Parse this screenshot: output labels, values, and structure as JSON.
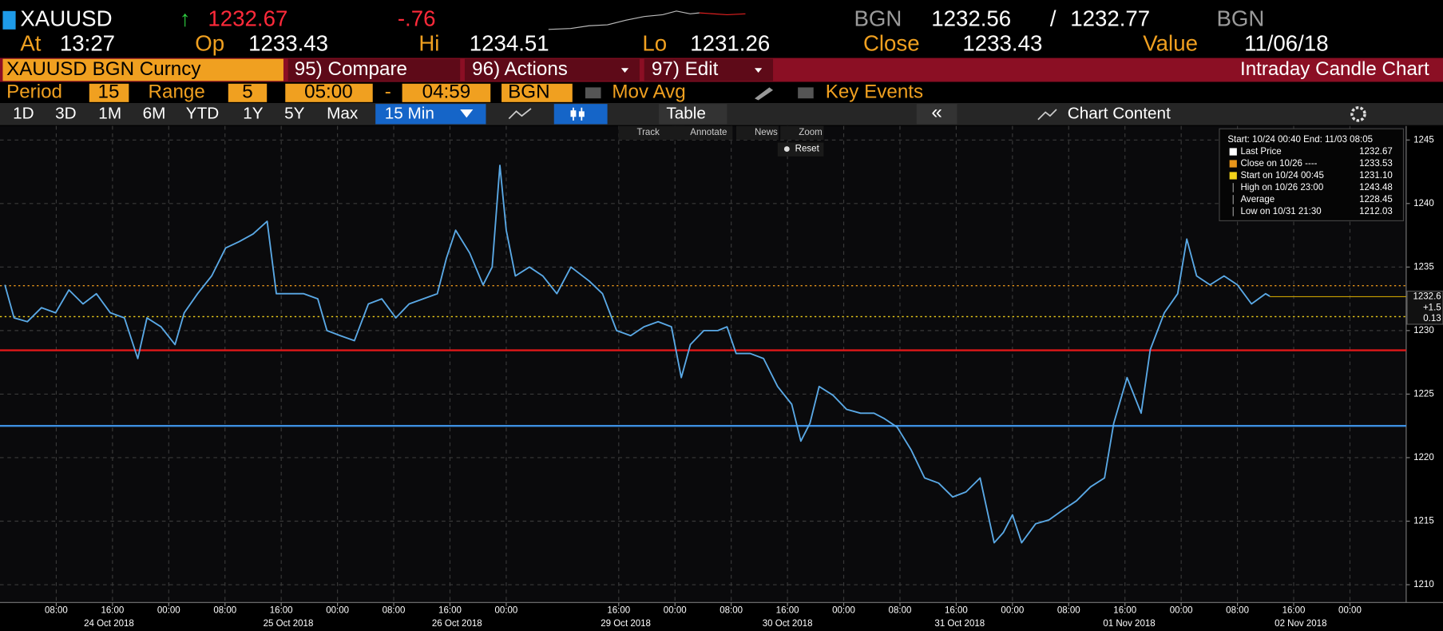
{
  "header": {
    "ticker": "XAUUSD",
    "arrow": "↑",
    "last": "1232.67",
    "change": "-.76",
    "source": "BGN",
    "bid": "1232.56",
    "slash": "/",
    "ask": "1232.77"
  },
  "quote_row": [
    {
      "label": "At",
      "value": "13:27"
    },
    {
      "label": "Op",
      "value": "1233.43"
    },
    {
      "label": "Hi",
      "value": "1234.51"
    },
    {
      "label": "Lo",
      "value": "1231.26"
    },
    {
      "label": "Close",
      "value": "1233.43"
    },
    {
      "label": "Value",
      "value": "11/06/18"
    }
  ],
  "menu": {
    "security": "XAUUSD BGN Curncy",
    "buttons": [
      "95) Compare",
      "96) Actions",
      "97) Edit"
    ],
    "title": "Intraday Candle Chart"
  },
  "settings": {
    "period_label": "Period",
    "period": "15",
    "range_label": "Range",
    "range": "5",
    "start": "05:00",
    "dash": "-",
    "end": "04:59",
    "mov_avg": "Mov Avg",
    "key_events": "Key Events"
  },
  "toolbar": {
    "ranges": [
      "1D",
      "3D",
      "1M",
      "6M",
      "YTD",
      "1Y",
      "5Y",
      "Max"
    ],
    "interval": "15 Min",
    "table": "Table",
    "collapse": "«",
    "chart_content": "Chart Content"
  },
  "chart_tools": [
    "Track",
    "Annotate",
    "News",
    "Zoom"
  ],
  "reset": "Reset",
  "chart_data": {
    "type": "line",
    "color": "#5aa9e6",
    "x": [
      0.7,
      2.0,
      3.9,
      5.9,
      7.9,
      9.8,
      11.8,
      13.7,
      15.7,
      17.7,
      19.6,
      20.9,
      22.9,
      24.9,
      26.2,
      28.1,
      30.1,
      32.1,
      34.0,
      36.0,
      38.0,
      39.3,
      41.2,
      43.2,
      45.2,
      46.5,
      48.4,
      50.4,
      52.4,
      54.3,
      56.3,
      58.2,
      60.2,
      62.2,
      63.5,
      64.8,
      66.8,
      68.7,
      70.0,
      71.1,
      72.0,
      73.3,
      75.3,
      77.2,
      79.2,
      81.2,
      83.8,
      85.7,
      87.7,
      89.7,
      91.6,
      93.6,
      95.5,
      96.9,
      98.2,
      100.1,
      102.1,
      103.4,
      104.7,
      106.7,
      108.6,
      110.6,
      112.6,
      113.9,
      115.2,
      116.5,
      118.5,
      120.4,
      122.4,
      124.3,
      125.7,
      127.6,
      129.6,
      131.5,
      133.5,
      135.5,
      137.4,
      139.4,
      141.4,
      142.7,
      144.0,
      145.3,
      147.3,
      149.2,
      151.2,
      153.1,
      155.1,
      157.1,
      158.4,
      160.3,
      162.3,
      163.6,
      165.6,
      167.5,
      168.8,
      170.2,
      172.1,
      174.1,
      176.0,
      178.0,
      180.0,
      180.6
    ],
    "values": [
      1233.6,
      1231.0,
      1230.7,
      1231.8,
      1231.4,
      1233.2,
      1232.1,
      1232.9,
      1231.4,
      1231.0,
      1227.8,
      1231.0,
      1230.3,
      1228.9,
      1231.4,
      1232.9,
      1234.3,
      1236.5,
      1237.0,
      1237.6,
      1238.6,
      1232.9,
      1232.9,
      1232.9,
      1232.5,
      1230.0,
      1229.6,
      1229.2,
      1232.1,
      1232.5,
      1231.0,
      1232.1,
      1232.5,
      1232.9,
      1235.7,
      1237.9,
      1236.1,
      1233.6,
      1235.0,
      1243.0,
      1237.9,
      1234.3,
      1235.0,
      1234.3,
      1232.9,
      1235.0,
      1233.9,
      1232.9,
      1230.0,
      1229.6,
      1230.3,
      1230.7,
      1230.3,
      1226.3,
      1228.9,
      1230.0,
      1230.0,
      1230.3,
      1228.2,
      1228.2,
      1227.8,
      1225.6,
      1224.2,
      1221.3,
      1222.7,
      1225.6,
      1224.9,
      1223.8,
      1223.5,
      1223.5,
      1223.1,
      1222.4,
      1220.6,
      1218.4,
      1218.0,
      1216.9,
      1217.3,
      1218.4,
      1213.3,
      1214.1,
      1215.5,
      1213.3,
      1214.8,
      1215.1,
      1215.9,
      1216.6,
      1217.7,
      1218.4,
      1222.7,
      1226.3,
      1223.5,
      1228.5,
      1231.4,
      1232.9,
      1237.2,
      1234.3,
      1233.6,
      1234.3,
      1233.6,
      1232.1,
      1232.9,
      1232.7
    ],
    "xlim": [
      0,
      200
    ],
    "ylim": [
      1208.6,
      1246.1
    ],
    "yticks": [
      1210,
      1215,
      1220,
      1225,
      1230,
      1235,
      1240,
      1245
    ],
    "xticks": [
      {
        "value": 8,
        "label": "08:00"
      },
      {
        "value": 16,
        "label": "16:00"
      },
      {
        "value": 24,
        "label": "00:00"
      },
      {
        "value": 32,
        "label": "08:00"
      },
      {
        "value": 40,
        "label": "16:00"
      },
      {
        "value": 48,
        "label": "00:00"
      },
      {
        "value": 56,
        "label": "08:00"
      },
      {
        "value": 64,
        "label": "16:00"
      },
      {
        "value": 72,
        "label": "00:00"
      },
      {
        "value": 88,
        "label": "16:00"
      },
      {
        "value": 96,
        "label": "00:00"
      },
      {
        "value": 104,
        "label": "08:00"
      },
      {
        "value": 112,
        "label": "16:00"
      },
      {
        "value": 120,
        "label": "00:00"
      },
      {
        "value": 128,
        "label": "08:00"
      },
      {
        "value": 136,
        "label": "16:00"
      },
      {
        "value": 144,
        "label": "00:00"
      },
      {
        "value": 152,
        "label": "08:00"
      },
      {
        "value": 160,
        "label": "16:00"
      },
      {
        "value": 168,
        "label": "00:00"
      },
      {
        "value": 176,
        "label": "08:00"
      },
      {
        "value": 184,
        "label": "16:00"
      },
      {
        "value": 192,
        "label": "00:00"
      }
    ],
    "date_labels": [
      {
        "value": 15.5,
        "label": "24 Oct 2018"
      },
      {
        "value": 41,
        "label": "25 Oct 2018"
      },
      {
        "value": 65,
        "label": "26 Oct 2018"
      },
      {
        "value": 89,
        "label": "29 Oct 2018"
      },
      {
        "value": 112,
        "label": "30 Oct 2018"
      },
      {
        "value": 136.5,
        "label": "31 Oct 2018"
      },
      {
        "value": 160.6,
        "label": "01 Nov 2018"
      },
      {
        "value": 185,
        "label": "02 Nov 2018"
      }
    ],
    "grid": true,
    "hlines": [
      {
        "value": 1222.5,
        "color": "#3d8fe0"
      }
    ],
    "legend": {
      "title": "Start: 10/24 00:40 End: 11/03 08:05",
      "entries": [
        {
          "name": "Last Price",
          "value": 1232.67,
          "color": "#c9a000",
          "swatch": "#ffffff",
          "line": "tail"
        },
        {
          "name": "Close on 10/26 ----",
          "value": 1233.53,
          "color": "#e8951a",
          "swatch": "#e8951a",
          "line": "dotted"
        },
        {
          "name": "Start on 10/24 00:45",
          "value": {
            "value": 1231.1,
            "label": "1231.10"
          },
          "color": "#f2d21a",
          "swatch": "#f2d21a",
          "line": "dotted"
        },
        {
          "name": "High on 10/26 23:00",
          "value": 1243.48,
          "color": "#999999",
          "swatch": "#999999",
          "line": "none"
        },
        {
          "name": "Average",
          "value": 1228.45,
          "color": "#e01818",
          "swatch": "#999999",
          "line": "solid"
        },
        {
          "name": "Low on 10/31 21:30",
          "value": 1212.03,
          "color": "#999999",
          "swatch": "#999999",
          "line": "none"
        }
      ]
    },
    "price_tag": [
      "1232.6",
      "+1.5",
      "0.13"
    ]
  }
}
